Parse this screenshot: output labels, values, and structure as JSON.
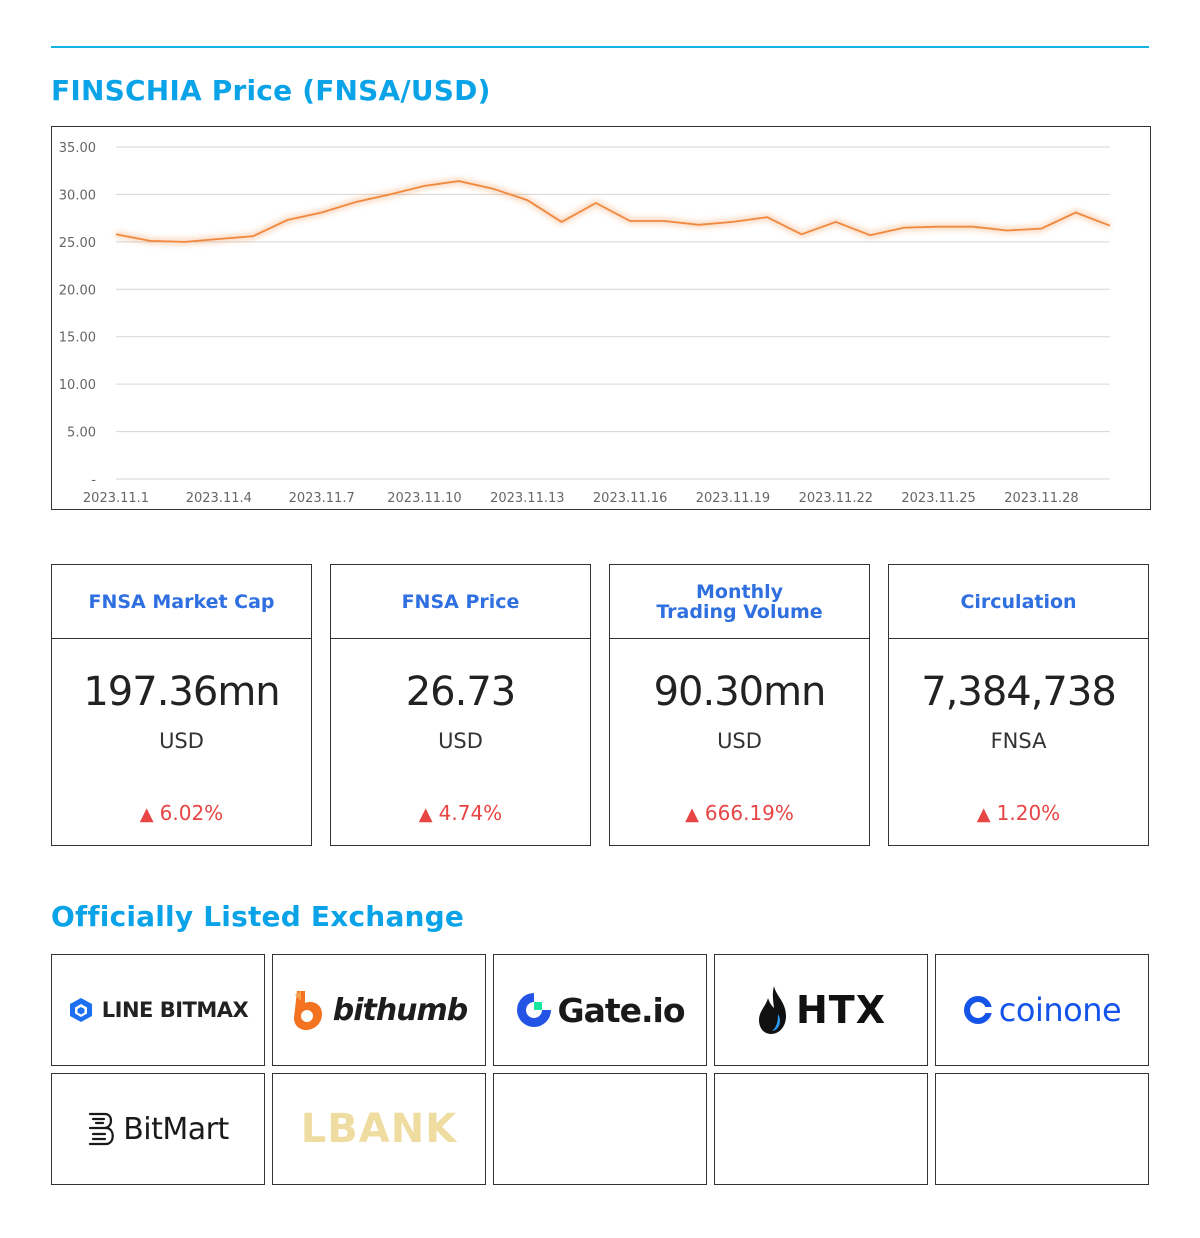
{
  "price_section": {
    "title": "FINSCHIA Price (FNSA/USD)"
  },
  "chart_data": {
    "type": "line",
    "title": "",
    "xlabel": "",
    "ylabel": "",
    "ylim": [
      0,
      35
    ],
    "y_ticks": [
      "-",
      "5.00",
      "10.00",
      "15.00",
      "20.00",
      "25.00",
      "30.00",
      "35.00"
    ],
    "x_tick_labels": [
      "2023.11.1",
      "2023.11.4",
      "2023.11.7",
      "2023.11.10",
      "2023.11.13",
      "2023.11.16",
      "2023.11.19",
      "2023.11.22",
      "2023.11.25",
      "2023.11.28"
    ],
    "x": [
      "2023.11.1",
      "2023.11.2",
      "2023.11.3",
      "2023.11.4",
      "2023.11.5",
      "2023.11.6",
      "2023.11.7",
      "2023.11.8",
      "2023.11.9",
      "2023.11.10",
      "2023.11.11",
      "2023.11.12",
      "2023.11.13",
      "2023.11.14",
      "2023.11.15",
      "2023.11.16",
      "2023.11.17",
      "2023.11.18",
      "2023.11.19",
      "2023.11.20",
      "2023.11.21",
      "2023.11.22",
      "2023.11.23",
      "2023.11.24",
      "2023.11.25",
      "2023.11.26",
      "2023.11.27",
      "2023.11.28",
      "2023.11.29",
      "2023.11.30"
    ],
    "series": [
      {
        "values": [
          25.8,
          25.1,
          25.0,
          25.3,
          25.6,
          27.3,
          28.1,
          29.2,
          30.0,
          30.9,
          31.4,
          30.6,
          29.4,
          27.1,
          29.1,
          27.2,
          27.2,
          26.8,
          27.1,
          27.6,
          25.8,
          27.1,
          25.7,
          26.5,
          26.6,
          26.6,
          26.2,
          26.4,
          28.1,
          26.7
        ]
      }
    ],
    "grid": true,
    "line_color": "#f0883e"
  },
  "stats": [
    {
      "title": "FNSA Market Cap",
      "value": "197.36mn",
      "unit": "USD",
      "change": "6.02%",
      "direction": "up"
    },
    {
      "title": "FNSA Price",
      "value": "26.73",
      "unit": "USD",
      "change": "4.74%",
      "direction": "up"
    },
    {
      "title": "Monthly\nTrading Volume",
      "value": "90.30mn",
      "unit": "USD",
      "change": "666.19%",
      "direction": "up"
    },
    {
      "title": "Circulation",
      "value": "7,384,738",
      "unit": "FNSA",
      "change": "1.20%",
      "direction": "up"
    }
  ],
  "change_symbol": "▲",
  "exchange_section": {
    "title": "Officially Listed Exchange"
  },
  "exchanges": [
    {
      "name": "LINE BITMAX",
      "icon": "line-bitmax-logo-icon",
      "color": "#1b6ff0"
    },
    {
      "name": "bithumb",
      "icon": "bithumb-logo-icon",
      "color": "#f37321"
    },
    {
      "name": "Gate.io",
      "icon": "gate-io-logo-icon",
      "color": "#2354e6"
    },
    {
      "name": "HTX",
      "icon": "htx-flame-icon",
      "color": "#1a1a1a"
    },
    {
      "name": "coinone",
      "icon": "coinone-logo-icon",
      "color": "#1554e8"
    },
    {
      "name": "BitMart",
      "icon": "bitmart-logo-icon",
      "color": "#1a1a1a"
    },
    {
      "name": "LBANK",
      "icon": "lbank-logo-icon",
      "color": "#efdca0"
    }
  ]
}
